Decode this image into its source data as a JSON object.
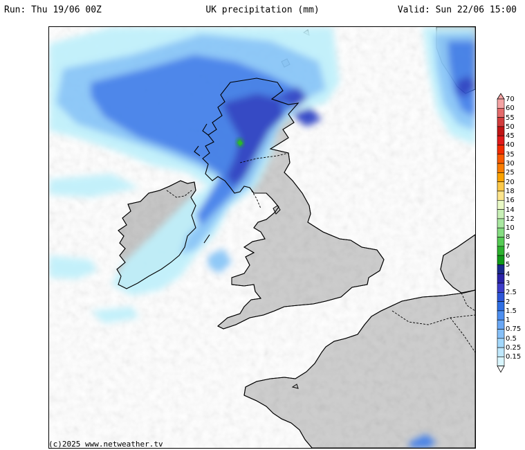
{
  "header": {
    "run": "Run: Thu 19/06 00Z",
    "title": "UK precipitation (mm)",
    "valid": "Valid: Sun 22/06 15:00"
  },
  "credit": "(c)2025 www.netweather.tv",
  "colors": {
    "land_light": "#d8d8d8",
    "land_mid": "#bdbdbd",
    "land_dark": "#8c8c8c",
    "coastline": "#000000",
    "border": "#000000"
  },
  "legend": {
    "items": [
      {
        "label": "70",
        "color": "#f4a3a3"
      },
      {
        "label": "60",
        "color": "#e46a6a"
      },
      {
        "label": "55",
        "color": "#d23c3c"
      },
      {
        "label": "50",
        "color": "#c01414"
      },
      {
        "label": "45",
        "color": "#e01a1a"
      },
      {
        "label": "40",
        "color": "#f22b00"
      },
      {
        "label": "35",
        "color": "#f95a00"
      },
      {
        "label": "30",
        "color": "#fa7d00"
      },
      {
        "label": "25",
        "color": "#fba300"
      },
      {
        "label": "20",
        "color": "#fcc94a"
      },
      {
        "label": "18",
        "color": "#fde58c"
      },
      {
        "label": "16",
        "color": "#e9f9c6"
      },
      {
        "label": "14",
        "color": "#c8f0b6"
      },
      {
        "label": "12",
        "color": "#a9e8a0"
      },
      {
        "label": "10",
        "color": "#85dd81"
      },
      {
        "label": "8",
        "color": "#55cb54"
      },
      {
        "label": "7",
        "color": "#2db12f"
      },
      {
        "label": "6",
        "color": "#119a19"
      },
      {
        "label": "5",
        "color": "#1a2a8c"
      },
      {
        "label": "4",
        "color": "#2a22a8"
      },
      {
        "label": "3",
        "color": "#3d3cc9"
      },
      {
        "label": "2.5",
        "color": "#2d56d8"
      },
      {
        "label": "2",
        "color": "#2f6fe4"
      },
      {
        "label": "1.5",
        "color": "#4d8ff0"
      },
      {
        "label": "1",
        "color": "#6aa8f5"
      },
      {
        "label": "0.75",
        "color": "#86c0f8"
      },
      {
        "label": "0.5",
        "color": "#a3d8fb"
      },
      {
        "label": "0.25",
        "color": "#bfe8fc"
      },
      {
        "label": "0.15",
        "color": "#d9f5fd"
      }
    ]
  }
}
